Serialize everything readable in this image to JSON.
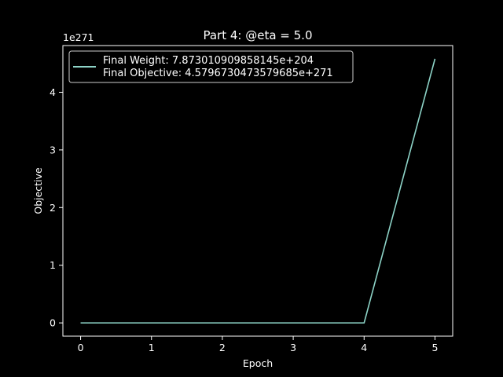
{
  "chart_data": {
    "type": "line",
    "title": "Part 4: @eta = 5.0",
    "xlabel": "Epoch",
    "ylabel": "Objective",
    "offset_label": "1e271",
    "xlim": [
      -0.25,
      5.25
    ],
    "ylim": [
      -0.23,
      4.81
    ],
    "x_ticks": [
      0,
      1,
      2,
      3,
      4,
      5
    ],
    "y_ticks": [
      0,
      1,
      2,
      3,
      4
    ],
    "grid": false,
    "legend_position": "top-left",
    "series": [
      {
        "name": "Final Weight: 7.873010909858145e+204",
        "name_line2": "Final Objective: 4.5796730473579685e+271",
        "color": "#8dd3c7",
        "x": [
          0,
          1,
          2,
          3,
          4,
          5
        ],
        "y": [
          0,
          0,
          0,
          0,
          0,
          4.58
        ]
      }
    ]
  },
  "colors": {
    "background": "#000000",
    "foreground": "#ffffff",
    "line": "#8dd3c7"
  }
}
